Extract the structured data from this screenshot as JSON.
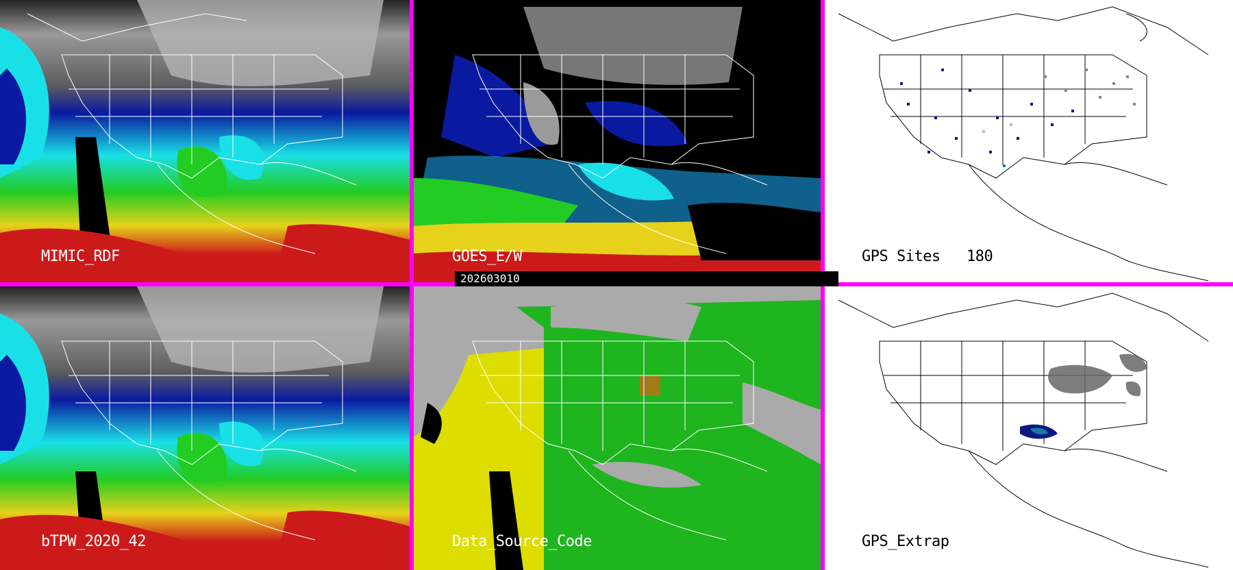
{
  "panels": {
    "mimic": {
      "label": "MIMIC_RDF"
    },
    "goes": {
      "label": "GOES_E/W"
    },
    "gps_sites": {
      "label": "GPS Sites",
      "count": "180"
    },
    "btpw": {
      "label": "bTPW_2020_42"
    },
    "data_source": {
      "label": "Data_Source_Code"
    },
    "gps_extrap": {
      "label": "GPS_Extrap"
    }
  },
  "timestamp": "202603010",
  "colors": {
    "frame": "#ff00ff",
    "tpw_gray": "#8c8c8c",
    "tpw_dark_blue": "#0a1aa0",
    "tpw_cyan": "#19e0e6",
    "tpw_green": "#22cc22",
    "tpw_yellow": "#e6d21a",
    "tpw_red": "#cc1a1a",
    "source_gray": "#aaaaaa",
    "source_green": "#1fb51f",
    "source_yellow": "#dddd00",
    "source_brown": "#a07d1a"
  }
}
